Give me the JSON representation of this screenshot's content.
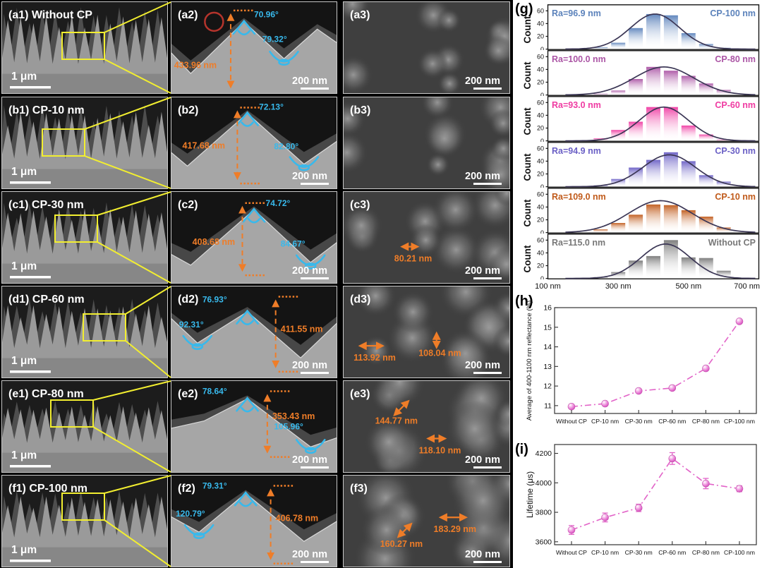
{
  "labels": {
    "g": "(g)",
    "h": "(h)",
    "i": "(i)"
  },
  "colors": {
    "annotation_orange": "#ef7d28",
    "annotation_cyan": "#38b9ec",
    "highlight_yellow": "#f2ee30",
    "defect_red": "#b5342c",
    "scatter_pink": "#e263c8"
  },
  "sem": {
    "rows": [
      {
        "c1": {
          "label": "(a1) Without CP",
          "scale": "1 μm"
        },
        "c2": {
          "tag": "(a2)",
          "scale": "200 nm",
          "height": "433.96 nm",
          "peak_angle": "70.96°",
          "valley_angle": "79.32°"
        },
        "c3": {
          "tag": "(a3)",
          "scale": "200 nm",
          "measures": []
        }
      },
      {
        "c1": {
          "label": "(b1) CP-10 nm",
          "scale": "1 μm"
        },
        "c2": {
          "tag": "(b2)",
          "scale": "200 nm",
          "height": "417.68 nm",
          "peak_angle": "72.13°",
          "valley_angle": "82.80°"
        },
        "c3": {
          "tag": "(b3)",
          "scale": "200 nm",
          "measures": []
        }
      },
      {
        "c1": {
          "label": "(c1) CP-30 nm",
          "scale": "1 μm"
        },
        "c2": {
          "tag": "(c2)",
          "scale": "200 nm",
          "height": "408.68 nm",
          "peak_angle": "74.72°",
          "valley_angle": "84.67°"
        },
        "c3": {
          "tag": "(c3)",
          "scale": "200 nm",
          "measures": [
            "80.21 nm"
          ]
        }
      },
      {
        "c1": {
          "label": "(d1) CP-60 nm",
          "scale": "1 μm"
        },
        "c2": {
          "tag": "(d2)",
          "scale": "200 nm",
          "height": "411.55 nm",
          "peak_angle": "76.93°",
          "valley_angle": "92.31°"
        },
        "c3": {
          "tag": "(d3)",
          "scale": "200 nm",
          "measures": [
            "113.92 nm",
            "108.04 nm"
          ]
        }
      },
      {
        "c1": {
          "label": "(e1) CP-80 nm",
          "scale": "1 μm"
        },
        "c2": {
          "tag": "(e2)",
          "scale": "200 nm",
          "height": "353.43 nm",
          "peak_angle": "78.64°",
          "valley_angle": "105.96°"
        },
        "c3": {
          "tag": "(e3)",
          "scale": "200 nm",
          "measures": [
            "144.77 nm",
            "118.10 nm"
          ]
        }
      },
      {
        "c1": {
          "label": "(f1) CP-100 nm",
          "scale": "1 μm"
        },
        "c2": {
          "tag": "(f2)",
          "scale": "200 nm",
          "height": "406.78 nm",
          "peak_angle": "79.31°",
          "valley_angle": "120.79°"
        },
        "c3": {
          "tag": "(f3)",
          "scale": "200 nm",
          "measures": [
            "160.27 nm",
            "183.29 nm"
          ]
        }
      }
    ]
  },
  "chart_data": {
    "g": {
      "type": "bar",
      "ylabel": "Count",
      "yticks": [
        0,
        20,
        40,
        60
      ],
      "xticks": [
        "100 nm",
        "300 nm",
        "500 nm",
        "700 nm"
      ],
      "xrange_nm": [
        100,
        700
      ],
      "bin_centers_nm": [
        250,
        300,
        350,
        400,
        450,
        500,
        550,
        600
      ],
      "series": [
        {
          "name": "CP-100 nm",
          "ra": "Ra=96.9 nm",
          "color": "#5b82bb",
          "counts": [
            3,
            10,
            33,
            55,
            53,
            25,
            8,
            2
          ],
          "curve": {
            "amp": 55,
            "mean": 405,
            "sigma": 70
          }
        },
        {
          "name": "CP-80 nm",
          "ra": "Ra=100.0 nm",
          "color": "#ab55a5",
          "counts": [
            2,
            7,
            25,
            44,
            38,
            30,
            18,
            8
          ],
          "curve": {
            "amp": 44,
            "mean": 430,
            "sigma": 85
          }
        },
        {
          "name": "CP-60 nm",
          "ra": "Ra=93.0 nm",
          "color": "#ef3ba2",
          "counts": [
            4,
            17,
            30,
            53,
            53,
            24,
            10,
            2
          ],
          "curve": {
            "amp": 53,
            "mean": 430,
            "sigma": 70
          }
        },
        {
          "name": "CP-30 nm",
          "ra": "Ra=94.9 nm",
          "color": "#6a5fc5",
          "counts": [
            2,
            12,
            30,
            42,
            54,
            40,
            18,
            8
          ],
          "curve": {
            "amp": 50,
            "mean": 445,
            "sigma": 75
          }
        },
        {
          "name": "CP-10 nm",
          "ra": "Ra=109.0 nm",
          "color": "#c05a1a",
          "counts": [
            5,
            15,
            28,
            44,
            43,
            35,
            25,
            8
          ],
          "curve": {
            "amp": 50,
            "mean": 420,
            "sigma": 90
          }
        },
        {
          "name": "Without CP",
          "ra": "Ra=115.0 nm",
          "color": "#787878",
          "counts": [
            2,
            10,
            28,
            35,
            60,
            33,
            32,
            12
          ],
          "curve": {
            "amp": 54,
            "mean": 435,
            "sigma": 70
          }
        }
      ]
    },
    "h": {
      "type": "line",
      "ylabel": "Average of 400-1100 nm reflectance (%)",
      "yticks": [
        11,
        12,
        13,
        14,
        15,
        16
      ],
      "ylim": [
        10.6,
        16
      ],
      "categories": [
        "Without CP",
        "CP-10 nm",
        "CP-30 nm",
        "CP-60 nm",
        "CP-80 nm",
        "CP-100 nm"
      ],
      "values": [
        10.95,
        11.1,
        11.75,
        11.9,
        12.9,
        15.3
      ],
      "color": "#e263c8"
    },
    "i": {
      "type": "line",
      "ylabel": "Lifetime (μs)",
      "yticks": [
        3600,
        3800,
        4000,
        4200
      ],
      "ylim": [
        3580,
        4260
      ],
      "categories": [
        "Without CP",
        "CP-10 nm",
        "CP-30 nm",
        "CP-60 nm",
        "CP-80 nm",
        "CP-100 nm"
      ],
      "values": [
        3680,
        3765,
        3830,
        4165,
        3995,
        3960
      ],
      "errors": [
        30,
        30,
        25,
        40,
        35,
        20
      ],
      "color": "#e263c8"
    }
  }
}
